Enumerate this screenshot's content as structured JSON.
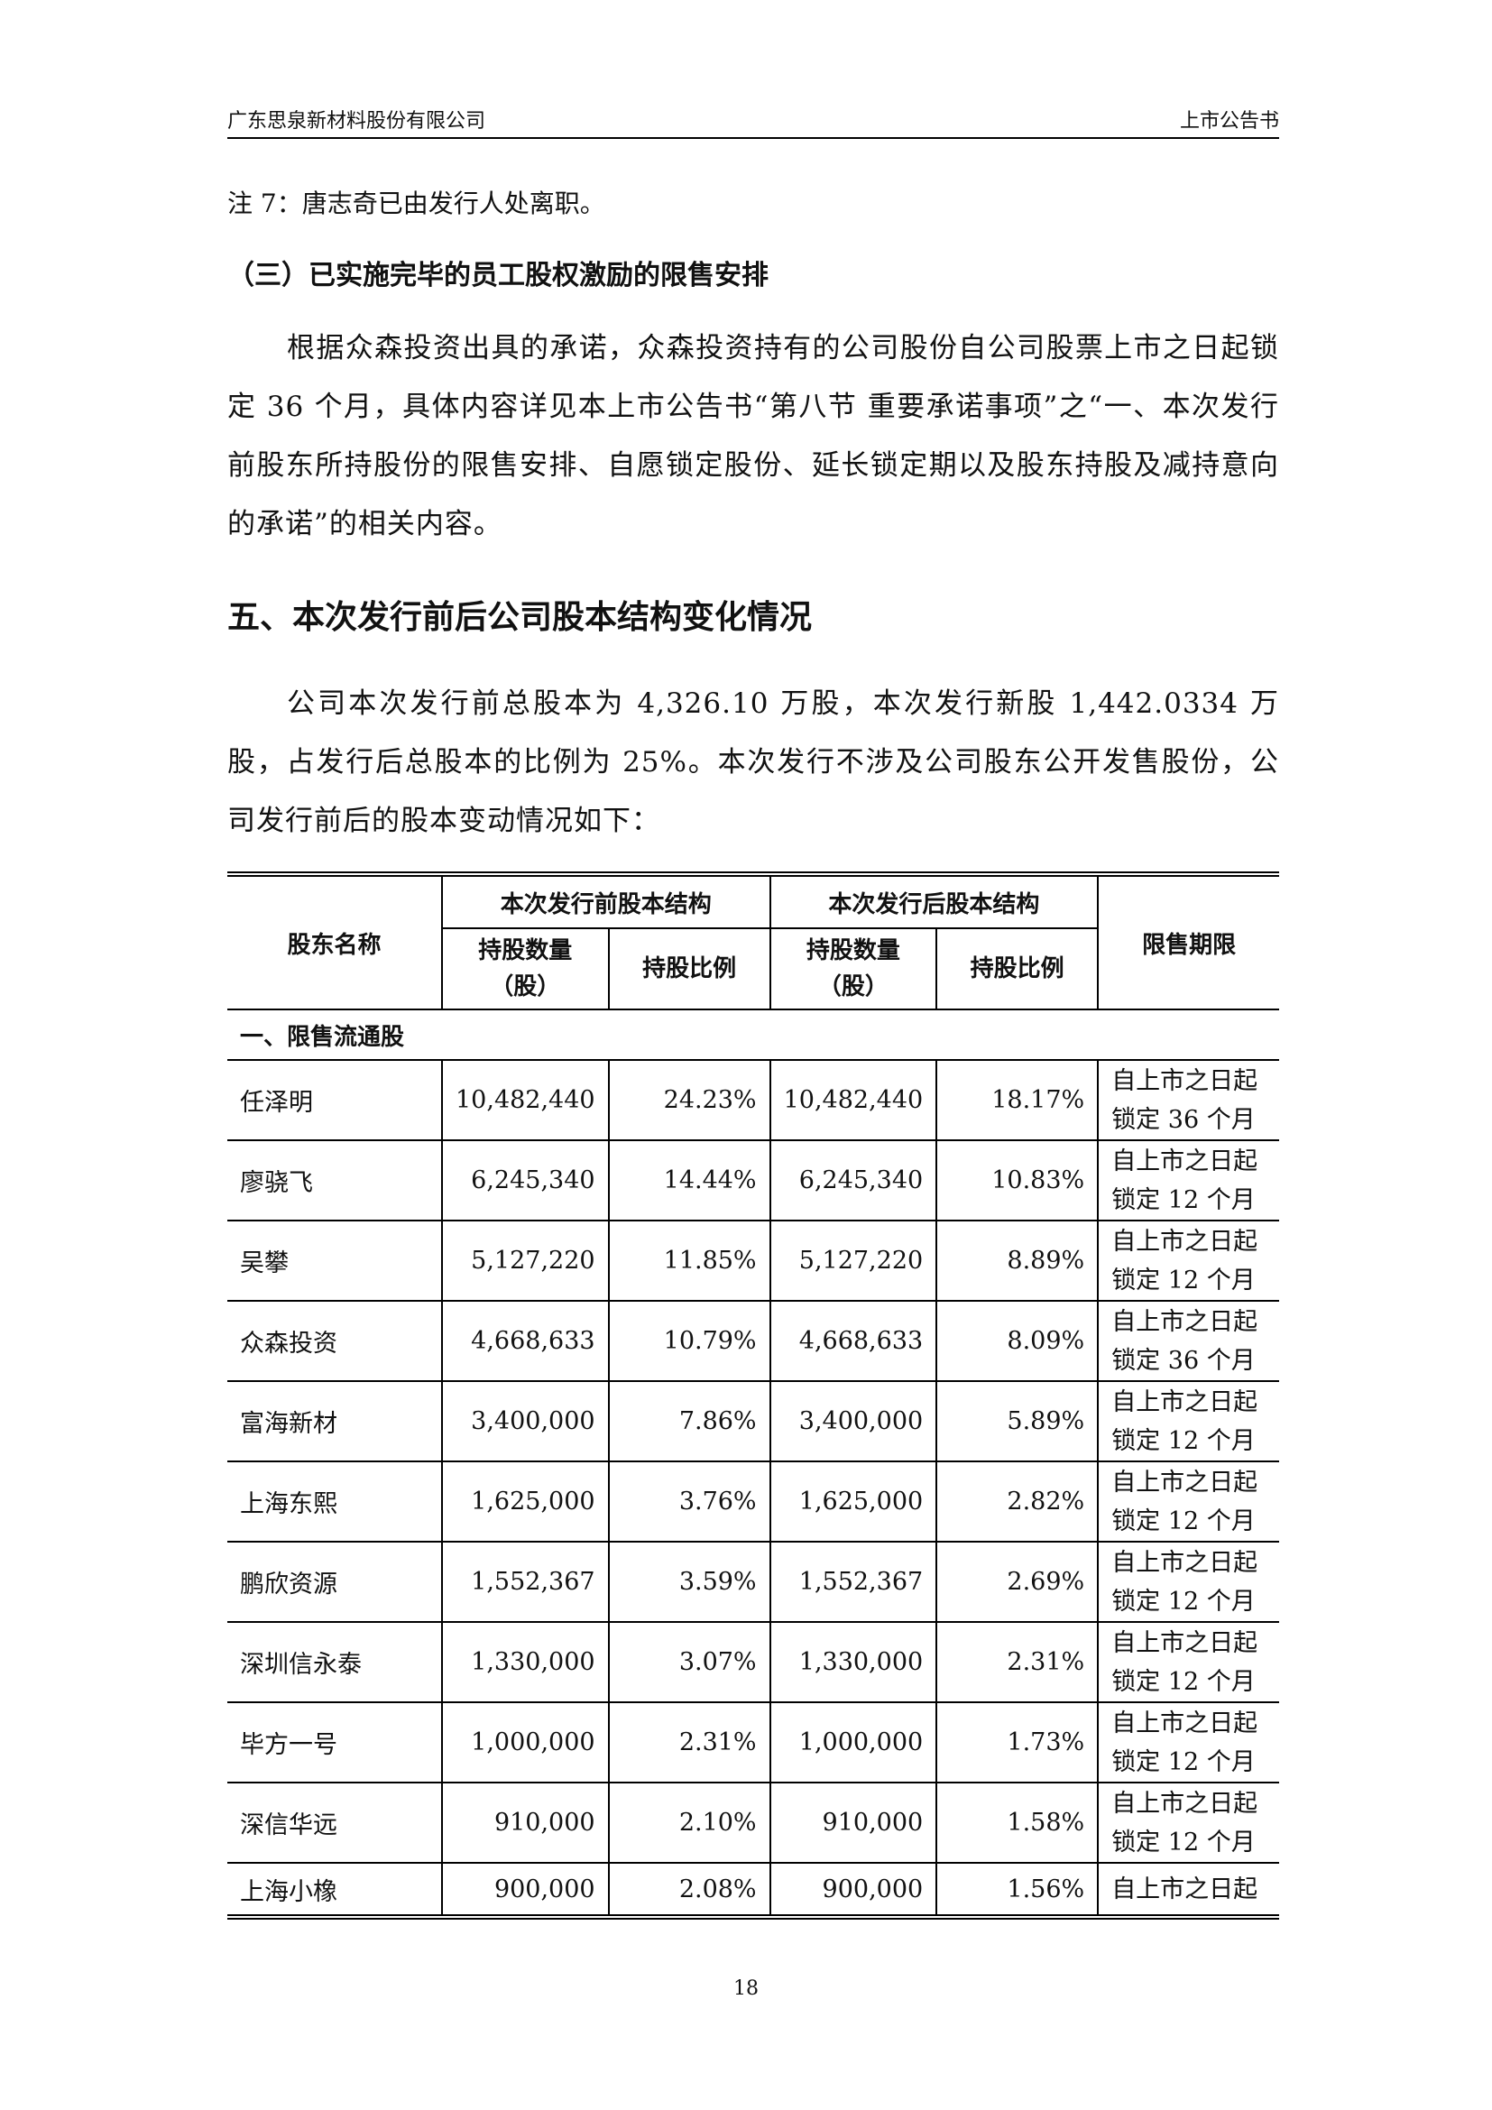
{
  "header": {
    "company": "广东思泉新材料股份有限公司",
    "doc": "上市公告书"
  },
  "note": "注 7：唐志奇已由发行人处离职。",
  "section3_title": "（三）已实施完毕的员工股权激励的限售安排",
  "para1": "根据众森投资出具的承诺，众森投资持有的公司股份自公司股票上市之日起锁定 36 个月，具体内容详见本上市公告书“第八节  重要承诺事项”之“一、本次发行前股东所持股份的限售安排、自愿锁定股份、延长锁定期以及股东持股及减持意向的承诺”的相关内容。",
  "section5_title": "五、本次发行前后公司股本结构变化情况",
  "para2": "公司本次发行前总股本为 4,326.10 万股，本次发行新股 1,442.0334 万股，占发行后总股本的比例为 25%。本次发行不涉及公司股东公开发售股份，公司发行前后的股本变动情况如下：",
  "table": {
    "h_name": "股东名称",
    "h_before": "本次发行前股本结构",
    "h_after": "本次发行后股本结构",
    "h_limit": "限售期限",
    "h_qty": "持股数量",
    "h_unit": "（股）",
    "h_ratio": "持股比例",
    "section": "一、限售流通股",
    "rows": [
      {
        "name": "任泽明",
        "q1": "10,482,440",
        "r1": "24.23%",
        "q2": "10,482,440",
        "r2": "18.17%",
        "l1": "自上市之日起",
        "l2": "锁定 36 个月"
      },
      {
        "name": "廖骁飞",
        "q1": "6,245,340",
        "r1": "14.44%",
        "q2": "6,245,340",
        "r2": "10.83%",
        "l1": "自上市之日起",
        "l2": "锁定 12 个月"
      },
      {
        "name": "吴攀",
        "q1": "5,127,220",
        "r1": "11.85%",
        "q2": "5,127,220",
        "r2": "8.89%",
        "l1": "自上市之日起",
        "l2": "锁定 12 个月"
      },
      {
        "name": "众森投资",
        "q1": "4,668,633",
        "r1": "10.79%",
        "q2": "4,668,633",
        "r2": "8.09%",
        "l1": "自上市之日起",
        "l2": "锁定 36 个月"
      },
      {
        "name": "富海新材",
        "q1": "3,400,000",
        "r1": "7.86%",
        "q2": "3,400,000",
        "r2": "5.89%",
        "l1": "自上市之日起",
        "l2": "锁定 12 个月"
      },
      {
        "name": "上海东熙",
        "q1": "1,625,000",
        "r1": "3.76%",
        "q2": "1,625,000",
        "r2": "2.82%",
        "l1": "自上市之日起",
        "l2": "锁定 12 个月"
      },
      {
        "name": "鹏欣资源",
        "q1": "1,552,367",
        "r1": "3.59%",
        "q2": "1,552,367",
        "r2": "2.69%",
        "l1": "自上市之日起",
        "l2": "锁定 12 个月"
      },
      {
        "name": "深圳信永泰",
        "q1": "1,330,000",
        "r1": "3.07%",
        "q2": "1,330,000",
        "r2": "2.31%",
        "l1": "自上市之日起",
        "l2": "锁定 12 个月"
      },
      {
        "name": "毕方一号",
        "q1": "1,000,000",
        "r1": "2.31%",
        "q2": "1,000,000",
        "r2": "1.73%",
        "l1": "自上市之日起",
        "l2": "锁定 12 个月"
      },
      {
        "name": "深信华远",
        "q1": "910,000",
        "r1": "2.10%",
        "q2": "910,000",
        "r2": "1.58%",
        "l1": "自上市之日起",
        "l2": "锁定 12 个月"
      },
      {
        "name": "上海小橡",
        "q1": "900,000",
        "r1": "2.08%",
        "q2": "900,000",
        "r2": "1.56%",
        "l1": "自上市之日起"
      }
    ]
  },
  "page_number": "18"
}
